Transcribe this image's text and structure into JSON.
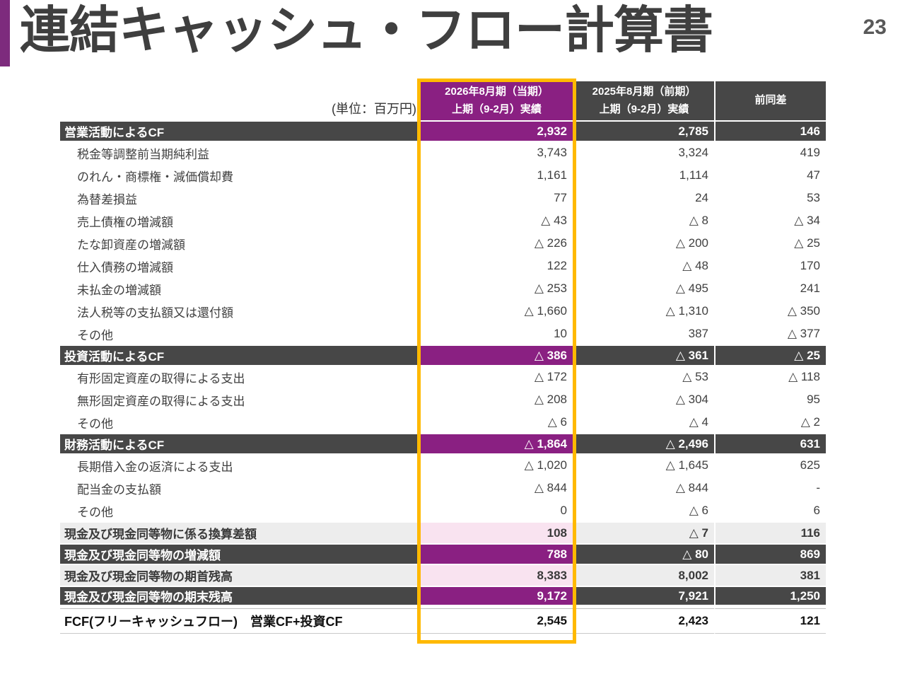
{
  "page": {
    "title": "連結キャッシュ・フロー計算書",
    "page_number": "23"
  },
  "colors": {
    "accent_purple": "#8A2082",
    "accent_bar_purple": "#7D2B7D",
    "header_dark": "#474747",
    "subtotal_gray": "#EDEDED",
    "subtotal_pink": "#F9E3F0",
    "highlight_orange": "#FFB900",
    "title_gray": "#3F3F3F"
  },
  "table": {
    "unit_label": "(単位：百万円)",
    "columns": [
      {
        "line1": "2026年8月期（当期）",
        "line2": "上期（9-2月）実績"
      },
      {
        "line1": "2025年8月期（前期）",
        "line2": "上期（9-2月）実績"
      },
      {
        "line1": "前同差",
        "line2": ""
      }
    ],
    "rows": [
      {
        "type": "section",
        "label": "営業活動によるCF",
        "values": [
          "2,932",
          "2,785",
          "146"
        ]
      },
      {
        "type": "detail",
        "label": "税金等調整前当期純利益",
        "values": [
          "3,743",
          "3,324",
          "419"
        ]
      },
      {
        "type": "detail",
        "label": "のれん・商標権・減価償却費",
        "values": [
          "1,161",
          "1,114",
          "47"
        ]
      },
      {
        "type": "detail",
        "label": "為替差損益",
        "values": [
          "77",
          "24",
          "53"
        ]
      },
      {
        "type": "detail",
        "label": "売上債権の増減額",
        "values": [
          "△ 43",
          "△ 8",
          "△ 34"
        ]
      },
      {
        "type": "detail",
        "label": "たな卸資産の増減額",
        "values": [
          "△ 226",
          "△ 200",
          "△ 25"
        ]
      },
      {
        "type": "detail",
        "label": "仕入債務の増減額",
        "values": [
          "122",
          "△ 48",
          "170"
        ]
      },
      {
        "type": "detail",
        "label": "未払金の増減額",
        "values": [
          "△ 253",
          "△ 495",
          "241"
        ]
      },
      {
        "type": "detail",
        "label": "法人税等の支払額又は還付額",
        "values": [
          "△ 1,660",
          "△ 1,310",
          "△ 350"
        ]
      },
      {
        "type": "detail",
        "label": "その他",
        "values": [
          "10",
          "387",
          "△ 377"
        ]
      },
      {
        "type": "section",
        "label": "投資活動によるCF",
        "values": [
          "△ 386",
          "△ 361",
          "△ 25"
        ]
      },
      {
        "type": "detail",
        "label": "有形固定資産の取得による支出",
        "values": [
          "△ 172",
          "△ 53",
          "△ 118"
        ]
      },
      {
        "type": "detail",
        "label": "無形固定資産の取得による支出",
        "values": [
          "△ 208",
          "△ 304",
          "95"
        ]
      },
      {
        "type": "detail",
        "label": "その他",
        "values": [
          "△ 6",
          "△ 4",
          "△ 2"
        ]
      },
      {
        "type": "section",
        "label": "財務活動によるCF",
        "values": [
          "△ 1,864",
          "△ 2,496",
          "631"
        ]
      },
      {
        "type": "detail",
        "label": "長期借入金の返済による支出",
        "values": [
          "△ 1,020",
          "△ 1,645",
          "625"
        ]
      },
      {
        "type": "detail",
        "label": "配当金の支払額",
        "values": [
          "△ 844",
          "△ 844",
          "-"
        ]
      },
      {
        "type": "detail",
        "label": "その他",
        "values": [
          "0",
          "△ 6",
          "6"
        ]
      },
      {
        "type": "subtotal",
        "label": "現金及び現金同等物に係る換算差額",
        "values": [
          "108",
          "△ 7",
          "116"
        ]
      },
      {
        "type": "section",
        "label": "現金及び現金同等物の増減額",
        "values": [
          "788",
          "△ 80",
          "869"
        ]
      },
      {
        "type": "subtotal",
        "label": "現金及び現金同等物の期首残高",
        "values": [
          "8,383",
          "8,002",
          "381"
        ]
      },
      {
        "type": "section",
        "label": "現金及び現金同等物の期末残高",
        "values": [
          "9,172",
          "7,921",
          "1,250"
        ]
      },
      {
        "type": "fcf",
        "label": "FCF(フリーキャッシュフロー)　営業CF+投資CF",
        "values": [
          "2,545",
          "2,423",
          "121"
        ]
      }
    ]
  }
}
